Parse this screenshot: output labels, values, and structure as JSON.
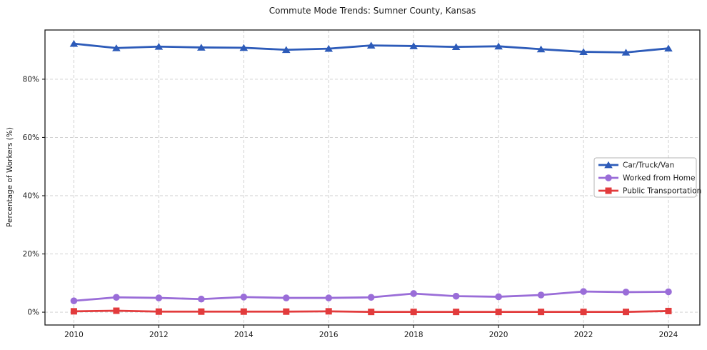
{
  "figure": {
    "background": "#ffffff",
    "plot_background": "#ffffff",
    "frame_color": "#1a1a1a",
    "grid_color": "#cccccc",
    "text_color": "#1a1a1a"
  },
  "chart_data": {
    "type": "line",
    "title": "Commute Mode Trends: Sumner County, Kansas",
    "ylabel": "Percentage of Workers (%)",
    "xlabel": "",
    "x": [
      2010,
      2011,
      2012,
      2013,
      2014,
      2015,
      2016,
      2017,
      2018,
      2019,
      2020,
      2021,
      2022,
      2023,
      2024
    ],
    "x_tick_labels": [
      2010,
      2012,
      2014,
      2016,
      2018,
      2020,
      2022,
      2024
    ],
    "y_ticks": [
      0,
      20,
      40,
      60,
      80
    ],
    "y_tick_suffix": "%",
    "xlim": [
      2009.32,
      2024.74
    ],
    "ylim": [
      -4.4,
      96.9
    ],
    "grid": "dashed",
    "legend": {
      "position": "center-right",
      "entries": [
        "Car/Truck/Van",
        "Worked from Home",
        "Public Transportation"
      ]
    },
    "series": [
      {
        "name": "Car/Truck/Van",
        "color": "#2d5bb9",
        "marker": "triangle",
        "values": [
          92.2,
          90.7,
          91.2,
          90.9,
          90.8,
          90.1,
          90.5,
          91.6,
          91.4,
          91.1,
          91.3,
          90.3,
          89.4,
          89.2,
          90.6
        ]
      },
      {
        "name": "Worked from Home",
        "color": "#9a6dd8",
        "marker": "circle",
        "values": [
          3.9,
          5.1,
          4.9,
          4.5,
          5.2,
          4.9,
          4.9,
          5.1,
          6.4,
          5.5,
          5.3,
          5.9,
          7.1,
          6.9,
          7.0
        ]
      },
      {
        "name": "Public Transportation",
        "color": "#e23b3c",
        "marker": "square",
        "values": [
          0.3,
          0.5,
          0.2,
          0.2,
          0.2,
          0.2,
          0.3,
          0.1,
          0.1,
          0.1,
          0.1,
          0.1,
          0.1,
          0.1,
          0.4
        ]
      }
    ]
  }
}
